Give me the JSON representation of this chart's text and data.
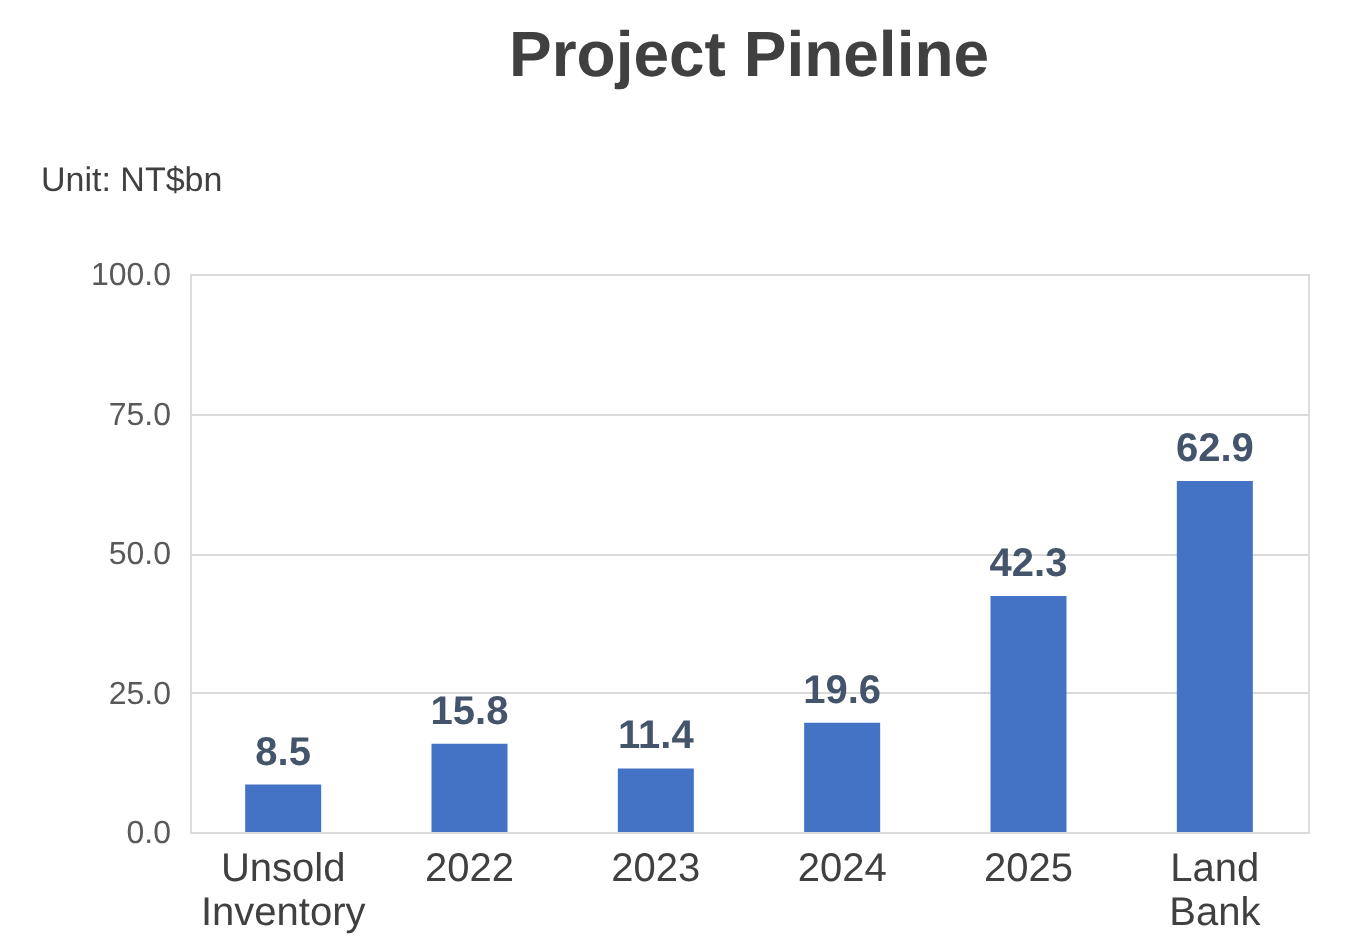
{
  "chart_data": {
    "type": "bar",
    "title": "Project Pineline",
    "ylabel": "Unit: NT$bn",
    "categories": [
      "Unsold Inventory",
      "2022",
      "2023",
      "2024",
      "2025",
      "Land Bank"
    ],
    "values": [
      8.5,
      15.8,
      11.4,
      19.6,
      42.3,
      62.9
    ],
    "color": "#4472c4",
    "ylim": [
      0,
      100
    ],
    "yticks": [
      {
        "value": 0,
        "label": "0.0"
      },
      {
        "value": 25,
        "label": "25.0"
      },
      {
        "value": 50,
        "label": "50.0"
      },
      {
        "value": 75,
        "label": "75.0"
      },
      {
        "value": 100,
        "label": "100.0"
      }
    ],
    "grid": "y",
    "data_labels": true
  }
}
